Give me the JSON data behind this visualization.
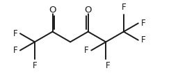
{
  "bg_color": "#ffffff",
  "line_color": "#1a1a1a",
  "text_color": "#1a1a1a",
  "line_width": 1.4,
  "font_size": 8.5,
  "bl": 1.4,
  "xlim": [
    0,
    10
  ],
  "ylim": [
    0,
    5.5
  ],
  "figsize": [
    2.56,
    1.18
  ],
  "dpi": 100
}
